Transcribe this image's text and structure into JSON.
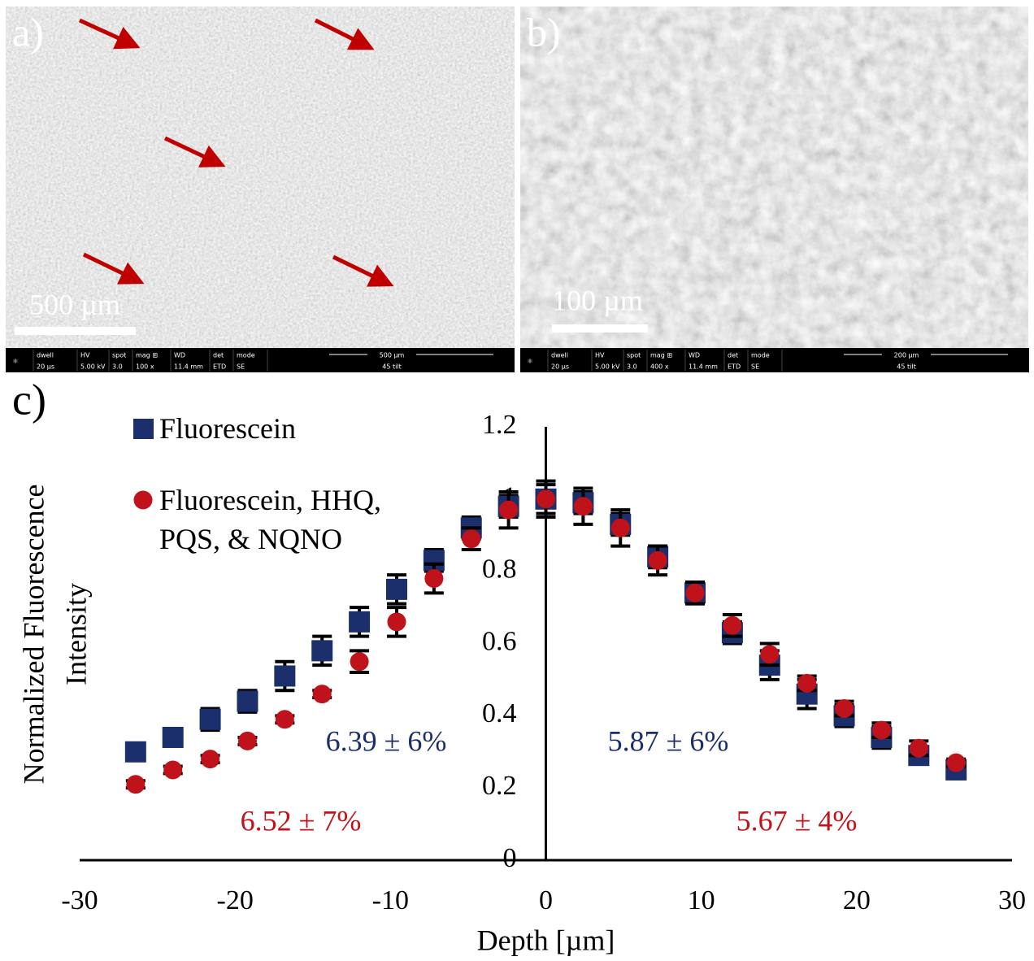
{
  "panels": [
    {
      "label": "a)",
      "scale_bar": "500 µm",
      "info_headers": [
        "dwell",
        "HV",
        "spot",
        "mag ⊞",
        "WD",
        "det",
        "mode"
      ],
      "info_values": [
        "20 µs",
        "5.00 kV",
        "3.0",
        "100 x",
        "11.4 mm",
        "ETD",
        "SE"
      ],
      "info_scale": "500 µm",
      "info_tilt": "45 tilt"
    },
    {
      "label": "b)",
      "scale_bar": "100 µm",
      "info_headers": [
        "dwell",
        "HV",
        "spot",
        "mag ⊞",
        "WD",
        "det",
        "mode"
      ],
      "info_values": [
        "20 µs",
        "5.00 kV",
        "3.0",
        "400 x",
        "11.4 mm",
        "ETD",
        "SE"
      ],
      "info_scale": "200 µm",
      "info_tilt": "45 tilt"
    }
  ],
  "chart_data": {
    "type": "scatter",
    "panel_label": "c)",
    "x_label": "Depth [µm]",
    "y_label": [
      "Normalized Fluorescence",
      "Intensity"
    ],
    "xlim": [
      -30,
      30
    ],
    "xticks": [
      -30,
      -20,
      -10,
      0,
      10,
      20,
      30
    ],
    "ylim": [
      0,
      1.2
    ],
    "yticks": [
      0,
      0.2,
      0.4,
      0.6,
      0.8,
      1,
      1.2
    ],
    "x": [
      -26.4,
      -24,
      -21.6,
      -19.2,
      -16.8,
      -14.4,
      -12,
      -9.6,
      -7.2,
      -4.8,
      -2.4,
      0,
      2.4,
      4.8,
      7.2,
      9.6,
      12,
      14.4,
      16.8,
      19.2,
      21.6,
      24,
      26.4
    ],
    "series": [
      {
        "name": "Fluorescein",
        "color": "#1a2f6b",
        "marker": "square",
        "values": [
          0.3,
          0.34,
          0.39,
          0.44,
          0.51,
          0.58,
          0.66,
          0.75,
          0.83,
          0.92,
          0.98,
          1.0,
          0.99,
          0.93,
          0.84,
          0.74,
          0.63,
          0.54,
          0.46,
          0.4,
          0.34,
          0.29,
          0.25
        ],
        "errors": [
          0.02,
          0.02,
          0.03,
          0.03,
          0.04,
          0.04,
          0.04,
          0.04,
          0.03,
          0.03,
          0.03,
          0.04,
          0.03,
          0.03,
          0.03,
          0.03,
          0.03,
          0.04,
          0.04,
          0.03,
          0.03,
          0.02,
          0.02
        ]
      },
      {
        "name": "Fluorescein, HHQ, PQS, & NQNO",
        "color": "#c0121a",
        "marker": "circle",
        "values": [
          0.21,
          0.25,
          0.28,
          0.33,
          0.39,
          0.46,
          0.55,
          0.66,
          0.78,
          0.89,
          0.97,
          1.0,
          0.98,
          0.92,
          0.83,
          0.74,
          0.65,
          0.57,
          0.49,
          0.42,
          0.36,
          0.31,
          0.27
        ],
        "errors": [
          0.01,
          0.01,
          0.01,
          0.01,
          0.01,
          0.01,
          0.03,
          0.04,
          0.04,
          0.03,
          0.05,
          0.05,
          0.05,
          0.05,
          0.04,
          0.03,
          0.03,
          0.03,
          0.02,
          0.02,
          0.02,
          0.02,
          0.01
        ]
      }
    ],
    "annotations": [
      {
        "text": "6.39 ± 6%",
        "color": "#1a2f6b"
      },
      {
        "text": "5.87 ± 6%",
        "color": "#1a2f6b"
      },
      {
        "text": "6.52 ± 7%",
        "color": "#c0121a"
      },
      {
        "text": "5.67 ± 4%",
        "color": "#c0121a"
      }
    ]
  }
}
